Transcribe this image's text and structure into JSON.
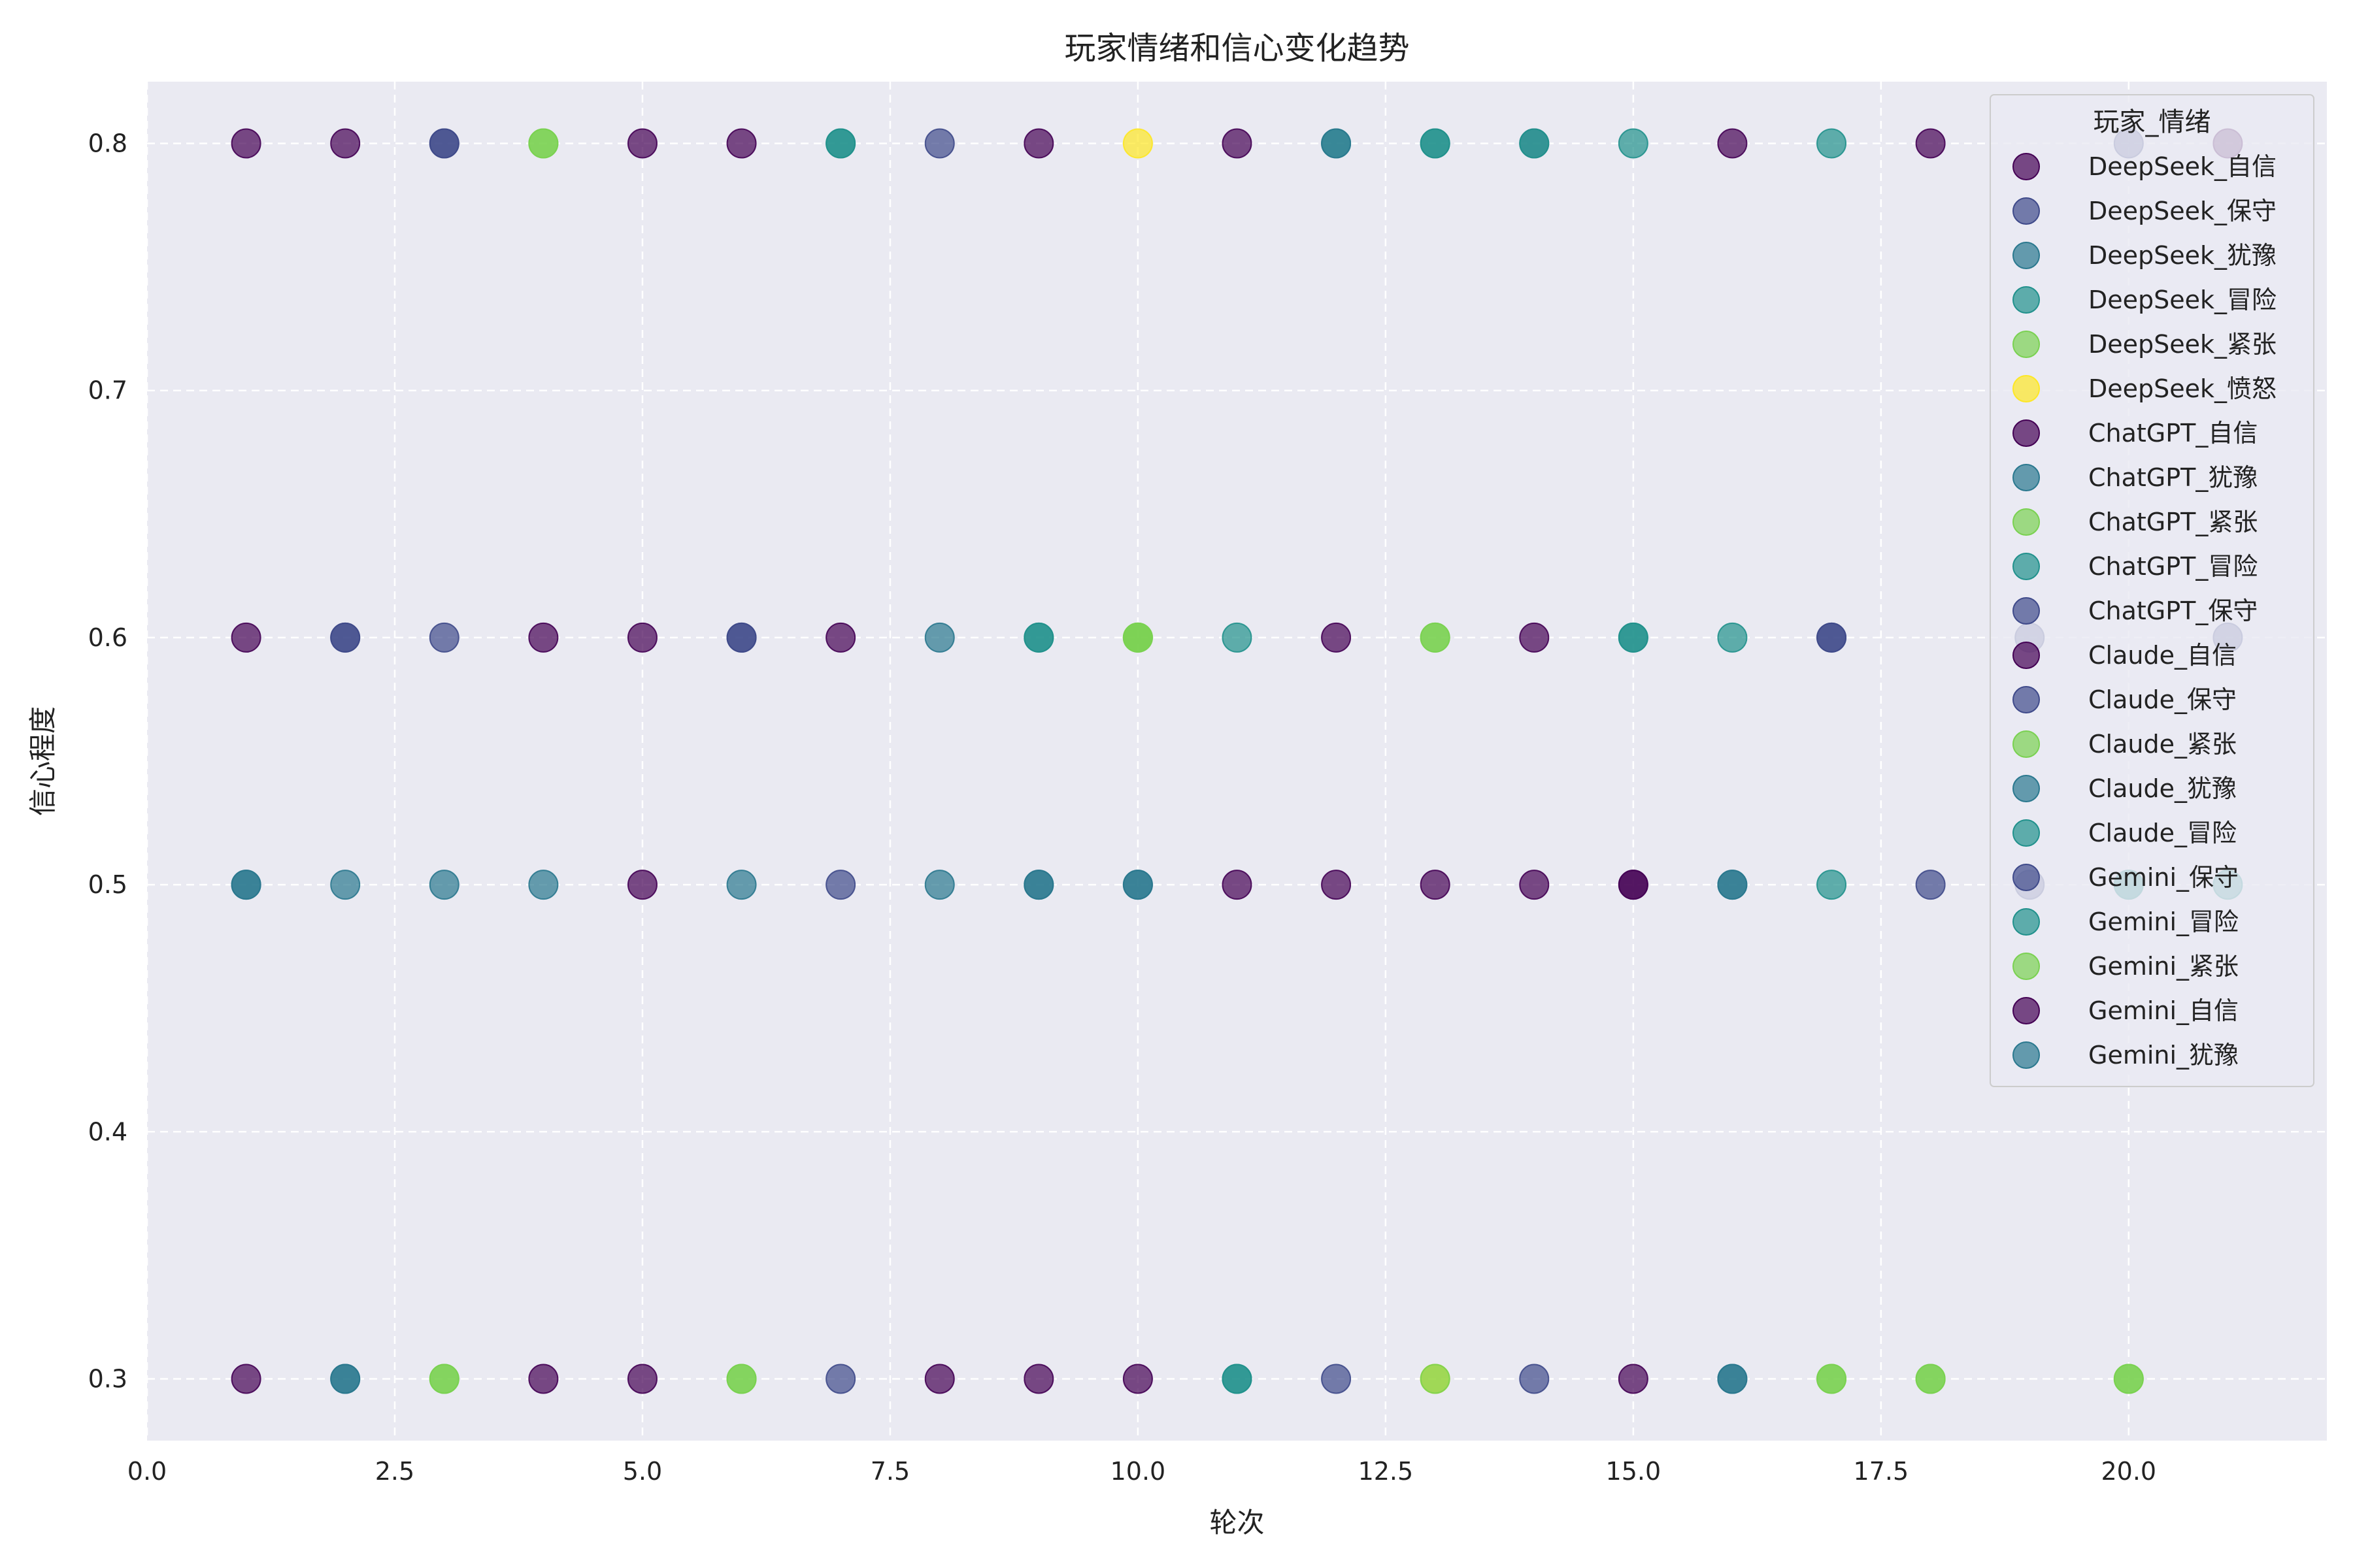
{
  "chart_data": {
    "type": "scatter",
    "title": "玩家情绪和信心变化趋势",
    "xlabel": "轮次",
    "ylabel": "信心程度",
    "xlim": [
      0,
      22
    ],
    "ylim": [
      0.275,
      0.825
    ],
    "xticks": [
      "0.0",
      "2.5",
      "5.0",
      "7.5",
      "10.0",
      "12.5",
      "15.0",
      "17.5",
      "20.0"
    ],
    "xtick_values": [
      0,
      2.5,
      5,
      7.5,
      10,
      12.5,
      15,
      17.5,
      20
    ],
    "yticks": [
      "0.3",
      "0.4",
      "0.5",
      "0.6",
      "0.7",
      "0.8"
    ],
    "ytick_values": [
      0.3,
      0.4,
      0.5,
      0.6,
      0.7,
      0.8
    ],
    "grid": true,
    "grid_style": "dashed",
    "background": "#eaeaf2",
    "legend_title": "玩家_情绪",
    "legend_position": "upper-right",
    "series": [
      {
        "name": "DeepSeek_自信",
        "color": "#440154",
        "points": [
          [
            1,
            0.8
          ],
          [
            5,
            0.5
          ],
          [
            9,
            0.8
          ],
          [
            12,
            0.5
          ],
          [
            15,
            0.5
          ],
          [
            18,
            0.8
          ],
          [
            21,
            0.8
          ]
        ]
      },
      {
        "name": "DeepSeek_保守",
        "color": "#3f4a8a",
        "points": [
          [
            2,
            0.6
          ],
          [
            6,
            0.6
          ],
          [
            3,
            0.8
          ],
          [
            17,
            0.6
          ],
          [
            19,
            0.6
          ],
          [
            21,
            0.6
          ]
        ]
      },
      {
        "name": "DeepSeek_犹豫",
        "color": "#2a788e",
        "points": [
          [
            1,
            0.5
          ],
          [
            2,
            0.3
          ],
          [
            3,
            0.5
          ],
          [
            8,
            0.5
          ],
          [
            10,
            0.5
          ],
          [
            16,
            0.3
          ]
        ]
      },
      {
        "name": "DeepSeek_冒险",
        "color": "#21918c",
        "points": [
          [
            7,
            0.8
          ],
          [
            9,
            0.6
          ],
          [
            11,
            0.3
          ],
          [
            12,
            0.8
          ],
          [
            15,
            0.8
          ],
          [
            17,
            0.8
          ],
          [
            20,
            0.5
          ]
        ]
      },
      {
        "name": "DeepSeek_紧张",
        "color": "#7ad151",
        "points": [
          [
            3,
            0.3
          ],
          [
            6,
            0.3
          ],
          [
            10,
            0.6
          ],
          [
            13,
            0.6
          ],
          [
            17,
            0.3
          ],
          [
            20,
            0.3
          ]
        ]
      },
      {
        "name": "DeepSeek_愤怒",
        "color": "#fde725",
        "points": [
          [
            10,
            0.8
          ],
          [
            13,
            0.3
          ]
        ]
      },
      {
        "name": "ChatGPT_自信",
        "color": "#440154",
        "points": [
          [
            2,
            0.8
          ],
          [
            4,
            0.3
          ],
          [
            5,
            0.6
          ],
          [
            8,
            0.3
          ],
          [
            11,
            0.8
          ],
          [
            14,
            0.5
          ],
          [
            15,
            0.3
          ]
        ]
      },
      {
        "name": "ChatGPT_犹豫",
        "color": "#2a788e",
        "points": [
          [
            4,
            0.5
          ],
          [
            6,
            0.5
          ],
          [
            9,
            0.5
          ],
          [
            14,
            0.8
          ],
          [
            16,
            0.5
          ]
        ]
      },
      {
        "name": "ChatGPT_紧张",
        "color": "#7ad151",
        "points": [
          [
            4,
            0.8
          ],
          [
            6,
            0.3
          ],
          [
            13,
            0.3
          ],
          [
            18,
            0.3
          ]
        ]
      },
      {
        "name": "ChatGPT_冒险",
        "color": "#21918c",
        "points": [
          [
            11,
            0.6
          ],
          [
            13,
            0.8
          ],
          [
            15,
            0.6
          ],
          [
            16,
            0.6
          ],
          [
            17,
            0.5
          ]
        ]
      },
      {
        "name": "ChatGPT_保守",
        "color": "#3f4a8a",
        "points": [
          [
            3,
            0.6
          ],
          [
            7,
            0.3
          ],
          [
            12,
            0.3
          ],
          [
            14,
            0.3
          ],
          [
            19,
            0.5
          ]
        ]
      },
      {
        "name": "Claude_自信",
        "color": "#440154",
        "points": [
          [
            1,
            0.6
          ],
          [
            4,
            0.6
          ],
          [
            7,
            0.6
          ],
          [
            9,
            0.3
          ],
          [
            12,
            0.6
          ],
          [
            14,
            0.6
          ],
          [
            16,
            0.8
          ]
        ]
      },
      {
        "name": "Claude_保守",
        "color": "#3f4a8a",
        "points": [
          [
            3,
            0.8
          ],
          [
            7,
            0.5
          ],
          [
            8,
            0.8
          ],
          [
            18,
            0.5
          ],
          [
            20,
            0.8
          ]
        ]
      },
      {
        "name": "Claude_紧张",
        "color": "#7ad151",
        "points": [
          [
            4,
            0.8
          ],
          [
            10,
            0.6
          ],
          [
            13,
            0.6
          ],
          [
            17,
            0.3
          ]
        ]
      },
      {
        "name": "Claude_犹豫",
        "color": "#2a788e",
        "points": [
          [
            2,
            0.5
          ],
          [
            8,
            0.6
          ],
          [
            16,
            0.3
          ]
        ]
      },
      {
        "name": "Claude_冒险",
        "color": "#21918c",
        "points": [
          [
            9,
            0.6
          ],
          [
            11,
            0.3
          ],
          [
            14,
            0.8
          ],
          [
            21,
            0.5
          ]
        ]
      },
      {
        "name": "Gemini_保守",
        "color": "#3f4a8a",
        "points": [
          [
            2,
            0.6
          ],
          [
            6,
            0.6
          ],
          [
            17,
            0.6
          ]
        ]
      },
      {
        "name": "Gemini_冒险",
        "color": "#21918c",
        "points": [
          [
            7,
            0.8
          ],
          [
            13,
            0.8
          ],
          [
            15,
            0.6
          ],
          [
            20,
            0.5
          ]
        ]
      },
      {
        "name": "Gemini_紧张",
        "color": "#7ad151",
        "points": [
          [
            3,
            0.3
          ],
          [
            10,
            0.6
          ],
          [
            18,
            0.3
          ],
          [
            20,
            0.3
          ]
        ]
      },
      {
        "name": "Gemini_自信",
        "color": "#440154",
        "points": [
          [
            1,
            0.3
          ],
          [
            5,
            0.3
          ],
          [
            5,
            0.8
          ],
          [
            6,
            0.8
          ],
          [
            10,
            0.3
          ],
          [
            11,
            0.5
          ],
          [
            13,
            0.5
          ],
          [
            15,
            0.5
          ]
        ]
      },
      {
        "name": "Gemini_犹豫",
        "color": "#2a788e",
        "points": [
          [
            1,
            0.5
          ],
          [
            2,
            0.3
          ],
          [
            9,
            0.5
          ],
          [
            10,
            0.5
          ],
          [
            12,
            0.8
          ],
          [
            16,
            0.5
          ]
        ]
      }
    ]
  }
}
